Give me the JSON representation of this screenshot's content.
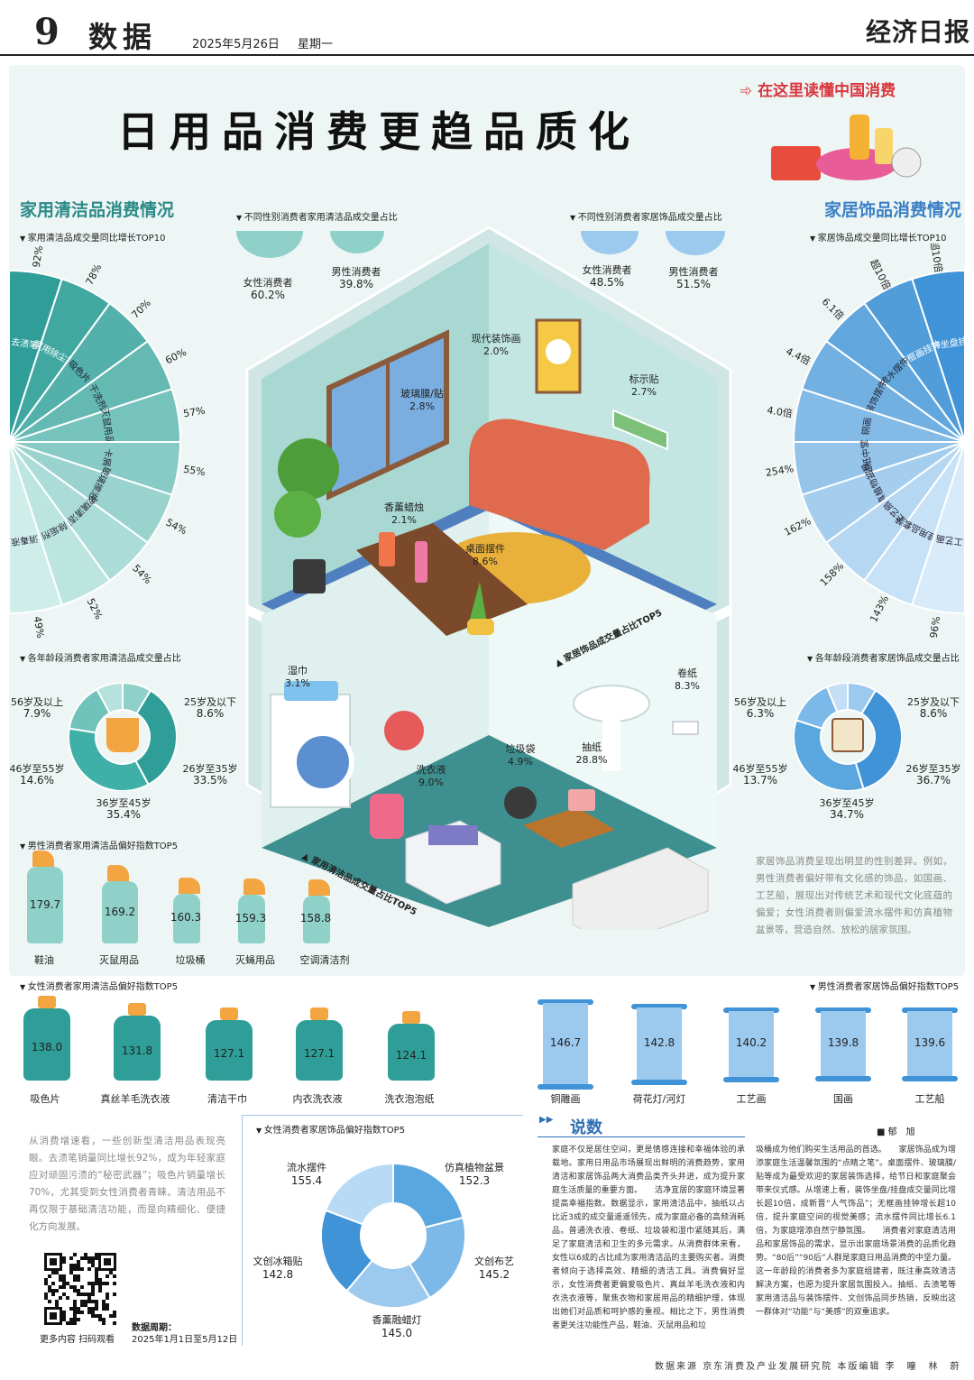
{
  "header": {
    "page_number": "9",
    "section": "数据",
    "date": "2025年5月26日",
    "weekday": "星期一",
    "paper": "经济日报"
  },
  "title": "日用品消费更趋品质化",
  "slogan": "在这里读懂中国消费",
  "cleaning_section_title": "家用清洁品消费情况",
  "decor_section_title": "家居饰品消费情况",
  "charts_titles": {
    "cleaning_top10": "家用清洁品成交量同比增长TOP10",
    "decor_top10": "家居饰品成交量同比增长TOP10",
    "gender_cleaning": "不同性别消费者家用清洁品成交量占比",
    "gender_decor": "不同性别消费者家居饰品成交量占比",
    "age_cleaning": "各年龄段消费者家用清洁品成交量占比",
    "age_decor": "各年龄段消费者家居饰品成交量占比",
    "male_cleaning": "男性消费者家用清洁品偏好指数TOP5",
    "female_cleaning": "女性消费者家用清洁品偏好指数TOP5",
    "male_decor": "男性消费者家居饰品偏好指数TOP5",
    "female_decor": "女性消费者家居饰品偏好指数TOP5",
    "house_upper": "家居饰品成交量占比TOP5",
    "house_lower": "家用清洁品成交量占比TOP5"
  },
  "chart_data": [
    {
      "type": "bar",
      "title": "家用清洁品成交量同比增长TOP10",
      "categories": [
        "去渍笔",
        "家用除尘掸",
        "吸色片",
        "干洗剂",
        "灭鼠用品",
        "卡屑",
        "玻璃擦泡沫",
        "玻璃清洁器",
        "除垢剂",
        "消毒液"
      ],
      "value_labels": [
        "92%",
        "78%",
        "70%",
        "60%",
        "57%",
        "55%",
        "54%",
        "54%",
        "52%",
        "49%"
      ],
      "values": [
        92,
        78,
        70,
        60,
        57,
        55,
        54,
        54,
        52,
        49
      ]
    },
    {
      "type": "bar",
      "title": "家居饰品成交量同比增长TOP10",
      "categories": [
        "装饰坐盘挂盘",
        "无框画挂钟",
        "流水摆件",
        "装饰摆件",
        "铜画",
        "贴纸中堂",
        "仿真植物盆景",
        "工艺扇",
        "壁挂用品套装",
        "工艺画"
      ],
      "value_labels": [
        "超10倍",
        "超10倍",
        "6.1倍",
        "4.4倍",
        "4.0倍",
        "254%",
        "162%",
        "158%",
        "143%",
        "96%"
      ]
    },
    {
      "type": "pie",
      "title": "不同性别消费者家用清洁品成交量占比",
      "categories": [
        "女性消费者",
        "男性消费者"
      ],
      "value_labels": [
        "60.2%",
        "39.8%"
      ],
      "values": [
        60.2,
        39.8
      ]
    },
    {
      "type": "pie",
      "title": "不同性别消费者家居饰品成交量占比",
      "categories": [
        "女性消费者",
        "男性消费者"
      ],
      "value_labels": [
        "48.5%",
        "51.5%"
      ],
      "values": [
        48.5,
        51.5
      ]
    },
    {
      "type": "pie",
      "title": "各年龄段消费者家用清洁品成交量占比",
      "categories": [
        "25岁及以下",
        "26岁至35岁",
        "36岁至45岁",
        "46岁至55岁",
        "56岁及以上"
      ],
      "value_labels": [
        "8.6%",
        "33.5%",
        "35.4%",
        "14.6%",
        "7.9%"
      ],
      "values": [
        8.6,
        33.5,
        35.4,
        14.6,
        7.9
      ]
    },
    {
      "type": "pie",
      "title": "各年龄段消费者家居饰品成交量占比",
      "categories": [
        "25岁及以下",
        "26岁至35岁",
        "36岁至45岁",
        "46岁至55岁",
        "56岁及以上"
      ],
      "value_labels": [
        "8.6%",
        "36.7%",
        "34.7%",
        "13.7%",
        "6.3%"
      ],
      "values": [
        8.6,
        36.7,
        34.7,
        13.7,
        6.3
      ]
    },
    {
      "type": "bar",
      "title": "男性消费者家用清洁品偏好指数TOP5",
      "categories": [
        "鞋油",
        "灭鼠用品",
        "垃圾桶",
        "灭蝇用品",
        "空调清洁剂"
      ],
      "value_labels": [
        "179.7",
        "169.2",
        "160.3",
        "159.3",
        "158.8"
      ],
      "values": [
        179.7,
        169.2,
        160.3,
        159.3,
        158.8
      ]
    },
    {
      "type": "bar",
      "title": "女性消费者家用清洁品偏好指数TOP5",
      "categories": [
        "吸色片",
        "真丝羊毛洗衣液",
        "清洁干巾",
        "内衣洗衣液",
        "洗衣泡泡纸"
      ],
      "value_labels": [
        "138.0",
        "131.8",
        "127.1",
        "127.1",
        "124.1"
      ],
      "values": [
        138.0,
        131.8,
        127.1,
        127.1,
        124.1
      ]
    },
    {
      "type": "bar",
      "title": "男性消费者家居饰品偏好指数TOP5",
      "categories": [
        "铜雕画",
        "荷花灯/河灯",
        "工艺画",
        "国画",
        "工艺船"
      ],
      "value_labels": [
        "146.7",
        "142.8",
        "140.2",
        "139.8",
        "139.6"
      ],
      "values": [
        146.7,
        142.8,
        140.2,
        139.8,
        139.6
      ]
    },
    {
      "type": "pie",
      "title": "女性消费者家居饰品偏好指数TOP5",
      "categories": [
        "流水摆件",
        "仿真植物盆景",
        "文创布艺",
        "香薰融蜡灯",
        "文创冰箱贴"
      ],
      "value_labels": [
        "155.4",
        "152.3",
        "145.2",
        "145.0",
        "142.8"
      ],
      "values": [
        155.4,
        152.3,
        145.2,
        145.0,
        142.8
      ]
    },
    {
      "type": "table",
      "title": "家居饰品成交量占比TOP5",
      "categories": [
        "现代装饰画",
        "玻璃膜/贴",
        "标示贴",
        "香薰蜡烛",
        "桌面摆件"
      ],
      "value_labels": [
        "2.0%",
        "2.8%",
        "2.7%",
        "2.1%",
        "8.6%"
      ],
      "values": [
        2.0,
        2.8,
        2.7,
        2.1,
        8.6
      ]
    },
    {
      "type": "table",
      "title": "家用清洁品成交量占比TOP5",
      "categories": [
        "湿巾",
        "卷纸",
        "垃圾袋",
        "抽纸",
        "洗衣液"
      ],
      "value_labels": [
        "3.1%",
        "8.3%",
        "4.9%",
        "28.8%",
        "9.0%"
      ],
      "values": [
        3.1,
        8.3,
        4.9,
        28.8,
        9.0
      ]
    }
  ],
  "para_right": "家居饰品消费呈现出明显的性别差异。例如，男性消费者偏好带有文化感的饰品，如国画、工艺船，展现出对传统艺术和现代文化底蕴的偏爱；女性消费者则偏爱流水摆件和仿真植物盆景等，营造自然、放松的居家氛围。",
  "para_left": "从消费增速看，一些创新型清洁用品表现亮眼。去渍笔销量同比增长92%，成为年轻家庭应对顽固污渍的“秘密武器”；吸色片销量增长70%，尤其受到女性消费者青睐。清洁用品不再仅限于基础清洁功能，而是向精细化、便捷化方向发展。",
  "qr_caption": "更多内容 扫码观看",
  "period_label": "数据周期：",
  "period_value": "2025年1月1日至5月12日",
  "column": {
    "title": "说数",
    "author": "郁　旭",
    "col1": "家庭不仅是居住空间，更是情感连接和幸福体验的承载地。家用日用品市场展现出鲜明的消费趋势，家用清洁和家居饰品两大消费品类齐头并进，成为提升家庭生活质量的重要方面。　　洁净宜居的家庭环境显著提高幸福指数。数据显示，家用清洁品中，抽纸以占比近3成的成交量遥遥领先，成为家庭必备的高频消耗品。普通洗衣液、卷纸、垃圾袋和湿巾紧随其后，满足了家庭清洁和卫生的多元需求。从消费群体来看，女性以6成的占比成为家用清洁品的主要购买者。消费者倾向于选择高效、精细的清洁工具。消费偏好显示，女性消费者更偏爱吸色片、真丝羊毛洗衣液和内衣洗衣液等，聚焦衣物和家居用品的精细护理，体现出她们对品质和呵护感的重视。相比之下，男性消费者更关注功能性产品，鞋油、灭鼠用品和垃",
    "col2": "圾桶成为他们购买生活用品的首选。　　家居饰品成为增添家庭生活温馨氛围的“点睛之笔”。桌面摆件、玻璃膜/贴等成为最受欢迎的家居装饰选择，给节日和家庭聚会带来仪式感。从增速上看，装饰坐盘/挂盘成交量同比增长超10倍，成新晋“人气饰品”；无框画挂钟增长超10倍，提升家庭空间的视觉美感；流水摆件同比增长6.1倍，为家庭增添自然宁静氛围。　　消费者对家庭清洁用品和家居饰品的需求，显示出家庭场景消费的品质化趋势。“80后”“90后”人群是家庭日用品消费的中坚力量。这一年龄段的消费者多为家庭组建者，既注重高效清洁解决方案，也愿为提升家居氛围投入。抽纸、去渍笔等家用清洁品与装饰摆件、文创饰品同步热销，反映出这一群体对“功能”与“美感”的双重追求。"
  },
  "footer": {
    "source_label": "数据来源",
    "source": "京东消费及产业发展研究院",
    "editor_label": "本版编辑",
    "editors": "李　瞳　林　蔚"
  },
  "colors": {
    "teal": "#2f9e98",
    "teal_light": "#8fd0c9",
    "blue": "#3f93d6",
    "blue_light": "#9cc9ee",
    "red": "#d9363e",
    "floor_blue": "#4f7fbf",
    "floor_teal": "#3e8f8f"
  }
}
